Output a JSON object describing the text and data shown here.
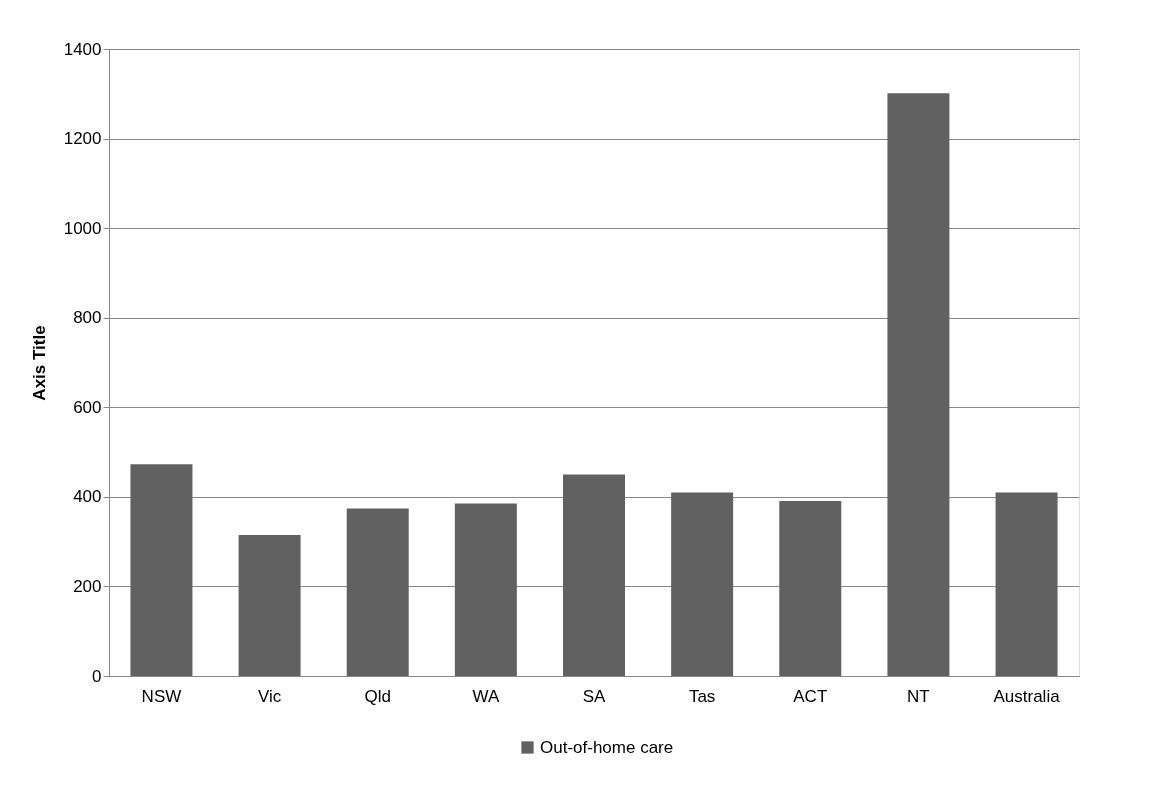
{
  "chart_data": {
    "type": "bar",
    "ylabel": "Axis Title",
    "categories": [
      "NSW",
      "Vic",
      "Qld",
      "WA",
      "SA",
      "Tas",
      "ACT",
      "NT",
      "Australia"
    ],
    "series": [
      {
        "name": "Out-of-home care",
        "color": "#616161",
        "values": [
          473,
          315,
          374,
          385,
          450,
          410,
          391,
          1301,
          410
        ]
      }
    ],
    "ylim": [
      0,
      1400
    ],
    "yticks": [
      0,
      200,
      400,
      600,
      800,
      1000,
      1200,
      1400
    ],
    "grid": "y",
    "legend": "bottom"
  }
}
